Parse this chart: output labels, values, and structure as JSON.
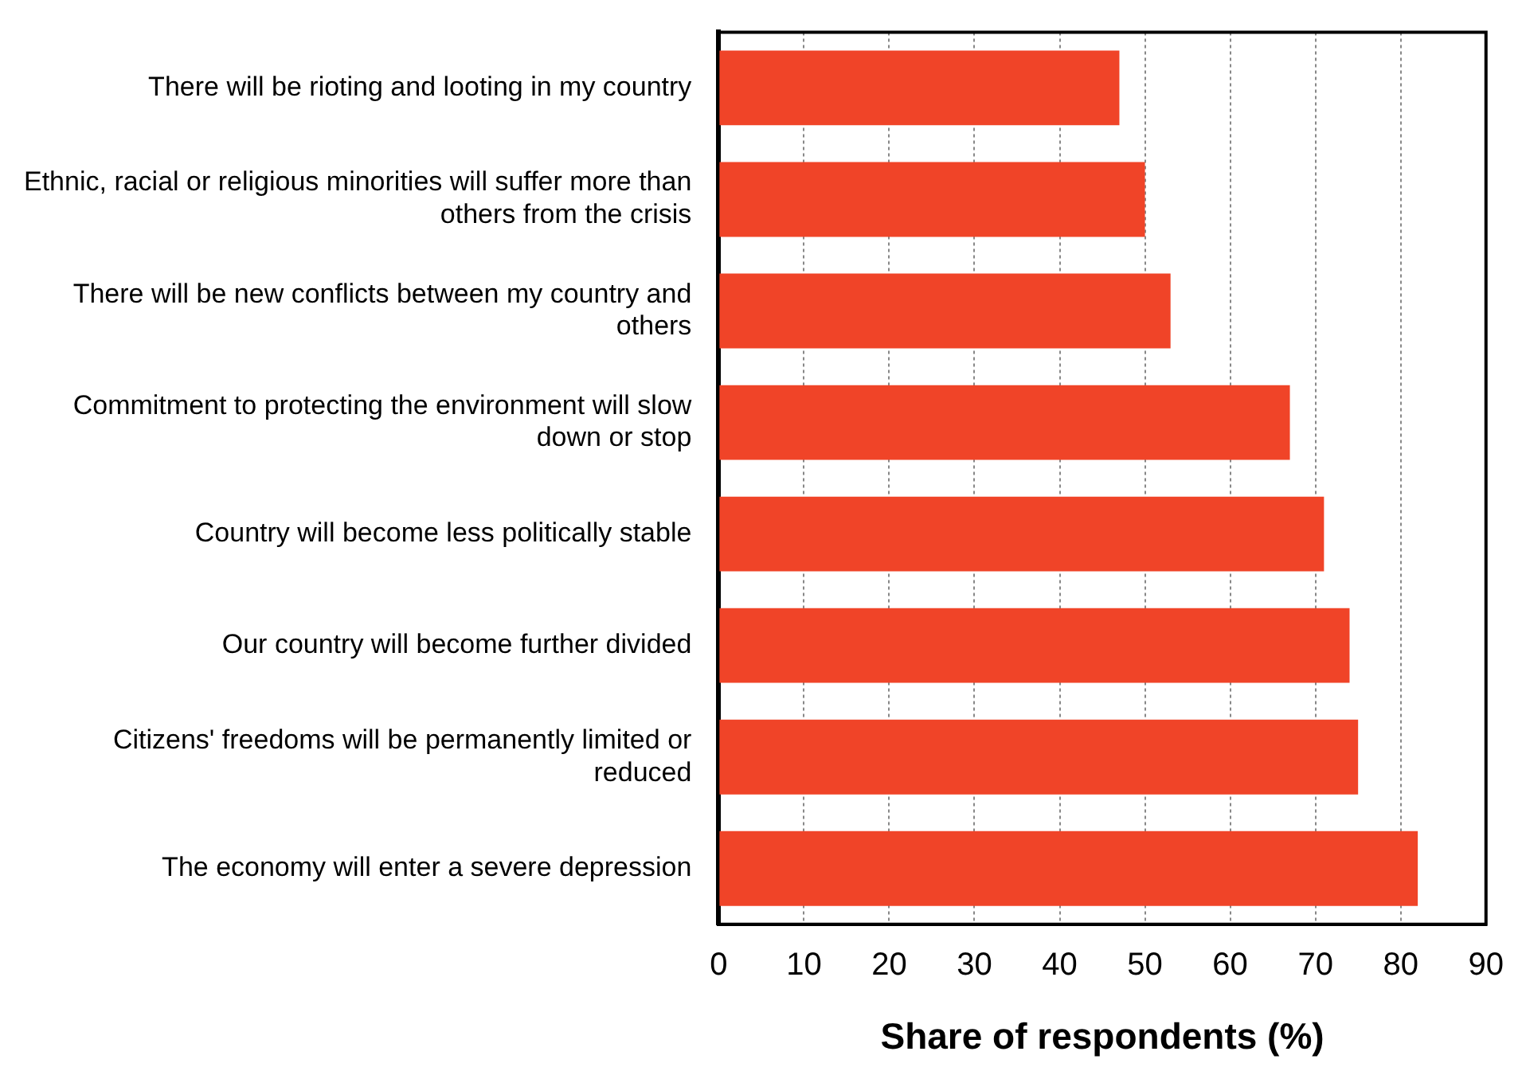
{
  "chart_data": {
    "type": "bar",
    "orientation": "horizontal",
    "xlabel": "Share of respondents (%)",
    "categories": [
      "There will be rioting and looting in my country",
      "Ethnic, racial or religious minorities will suffer more than others from the crisis",
      "There will be new conflicts between my country and others",
      "Commitment to protecting the environment will slow down or stop",
      "Country will become less politically stable",
      "Our country will become further divided",
      "Citizens' freedoms will be permanently limited or reduced",
      "The economy will enter a severe depression"
    ],
    "values": [
      47,
      50,
      53,
      67,
      71,
      74,
      75,
      82
    ],
    "color": "#f04428",
    "xlim": [
      0,
      90
    ],
    "xticks": [
      0,
      10,
      20,
      30,
      40,
      50,
      60,
      70,
      80,
      90
    ],
    "grid": "x"
  }
}
